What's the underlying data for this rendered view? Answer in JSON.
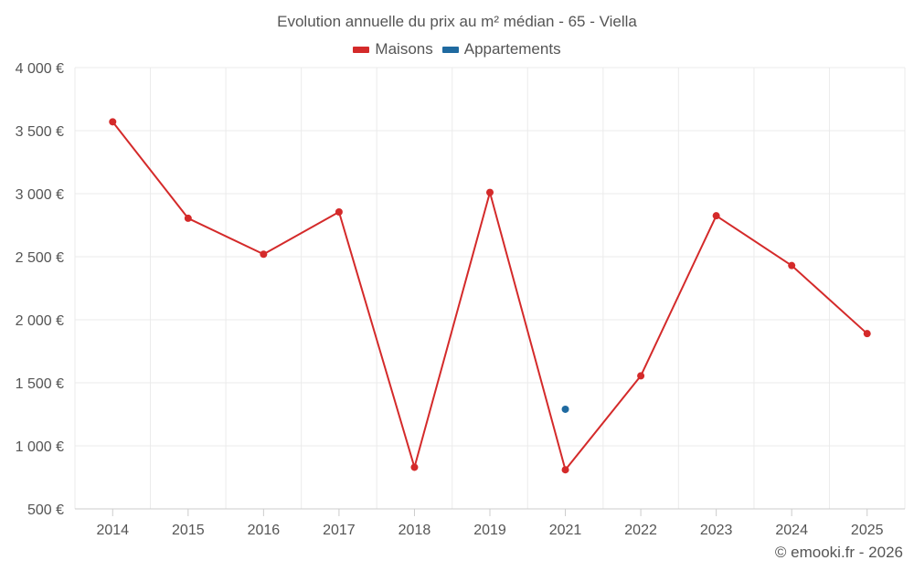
{
  "title": "Evolution annuelle du prix au m² médian - 65 - Viella",
  "credit": "© emooki.fr - 2026",
  "colors": {
    "maisons": "#d42a2a",
    "appartements": "#1f6aa0",
    "grid": "#ebebeb",
    "axis": "#cccccc"
  },
  "chart_data": {
    "type": "line",
    "title": "Evolution annuelle du prix au m² médian - 65 - Viella",
    "xlabel": "",
    "ylabel": "",
    "categories": [
      "2014",
      "2015",
      "2016",
      "2017",
      "2018",
      "2019",
      "2021",
      "2022",
      "2023",
      "2024",
      "2025"
    ],
    "ylim": [
      500,
      4000
    ],
    "yticks": [
      "500 €",
      "1 000 €",
      "1 500 €",
      "2 000 €",
      "2 500 €",
      "3 000 €",
      "3 500 €",
      "4 000 €"
    ],
    "ytick_values": [
      500,
      1000,
      1500,
      2000,
      2500,
      3000,
      3500,
      4000
    ],
    "grid": true,
    "legend_position": "top-center",
    "series": [
      {
        "name": "Maisons",
        "values": [
          3570,
          2805,
          2520,
          2855,
          830,
          3010,
          810,
          1555,
          2825,
          2430,
          1890
        ]
      },
      {
        "name": "Appartements",
        "values": [
          null,
          null,
          null,
          null,
          null,
          null,
          1290,
          null,
          null,
          null,
          null
        ]
      }
    ]
  }
}
